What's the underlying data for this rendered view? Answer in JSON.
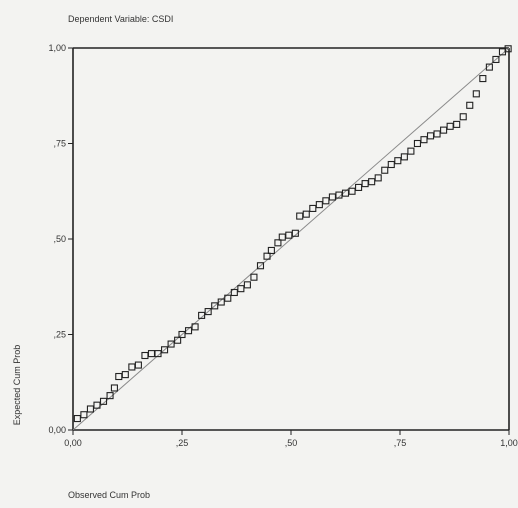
{
  "chart_data": {
    "type": "scatter",
    "subtitle": "Dependent Variable: CSDI",
    "xlabel": "Observed Cum Prob",
    "ylabel": "Expected Cum Prob",
    "xlim": [
      0,
      1
    ],
    "ylim": [
      0,
      1
    ],
    "xticks": [
      0,
      0.25,
      0.5,
      0.75,
      1.0
    ],
    "xtick_labels": [
      "0,00",
      ",25",
      ",50",
      ",75",
      "1,00"
    ],
    "yticks": [
      0,
      0.25,
      0.5,
      0.75,
      1.0
    ],
    "ytick_labels": [
      "0,00",
      ",25",
      ",50",
      ",75",
      "1,00"
    ],
    "grid": false,
    "reference_line": {
      "from": [
        0,
        0
      ],
      "to": [
        1,
        1
      ]
    },
    "points": [
      [
        0.01,
        0.03
      ],
      [
        0.025,
        0.04
      ],
      [
        0.04,
        0.055
      ],
      [
        0.055,
        0.065
      ],
      [
        0.07,
        0.075
      ],
      [
        0.085,
        0.09
      ],
      [
        0.095,
        0.11
      ],
      [
        0.105,
        0.14
      ],
      [
        0.12,
        0.145
      ],
      [
        0.135,
        0.165
      ],
      [
        0.15,
        0.17
      ],
      [
        0.165,
        0.195
      ],
      [
        0.18,
        0.2
      ],
      [
        0.195,
        0.2
      ],
      [
        0.21,
        0.21
      ],
      [
        0.225,
        0.225
      ],
      [
        0.24,
        0.235
      ],
      [
        0.25,
        0.25
      ],
      [
        0.265,
        0.26
      ],
      [
        0.28,
        0.27
      ],
      [
        0.295,
        0.3
      ],
      [
        0.31,
        0.31
      ],
      [
        0.325,
        0.325
      ],
      [
        0.34,
        0.335
      ],
      [
        0.355,
        0.345
      ],
      [
        0.37,
        0.36
      ],
      [
        0.385,
        0.37
      ],
      [
        0.4,
        0.38
      ],
      [
        0.415,
        0.4
      ],
      [
        0.43,
        0.43
      ],
      [
        0.445,
        0.455
      ],
      [
        0.455,
        0.47
      ],
      [
        0.47,
        0.49
      ],
      [
        0.48,
        0.505
      ],
      [
        0.495,
        0.51
      ],
      [
        0.51,
        0.515
      ],
      [
        0.52,
        0.56
      ],
      [
        0.535,
        0.565
      ],
      [
        0.55,
        0.58
      ],
      [
        0.565,
        0.59
      ],
      [
        0.58,
        0.6
      ],
      [
        0.595,
        0.61
      ],
      [
        0.61,
        0.615
      ],
      [
        0.625,
        0.62
      ],
      [
        0.64,
        0.625
      ],
      [
        0.655,
        0.635
      ],
      [
        0.67,
        0.645
      ],
      [
        0.685,
        0.65
      ],
      [
        0.7,
        0.66
      ],
      [
        0.715,
        0.68
      ],
      [
        0.73,
        0.695
      ],
      [
        0.745,
        0.705
      ],
      [
        0.76,
        0.715
      ],
      [
        0.775,
        0.73
      ],
      [
        0.79,
        0.75
      ],
      [
        0.805,
        0.76
      ],
      [
        0.82,
        0.77
      ],
      [
        0.835,
        0.775
      ],
      [
        0.85,
        0.785
      ],
      [
        0.865,
        0.795
      ],
      [
        0.88,
        0.8
      ],
      [
        0.895,
        0.82
      ],
      [
        0.91,
        0.85
      ],
      [
        0.925,
        0.88
      ],
      [
        0.94,
        0.92
      ],
      [
        0.955,
        0.95
      ],
      [
        0.97,
        0.97
      ],
      [
        0.985,
        0.99
      ],
      [
        0.998,
        0.998
      ]
    ]
  }
}
